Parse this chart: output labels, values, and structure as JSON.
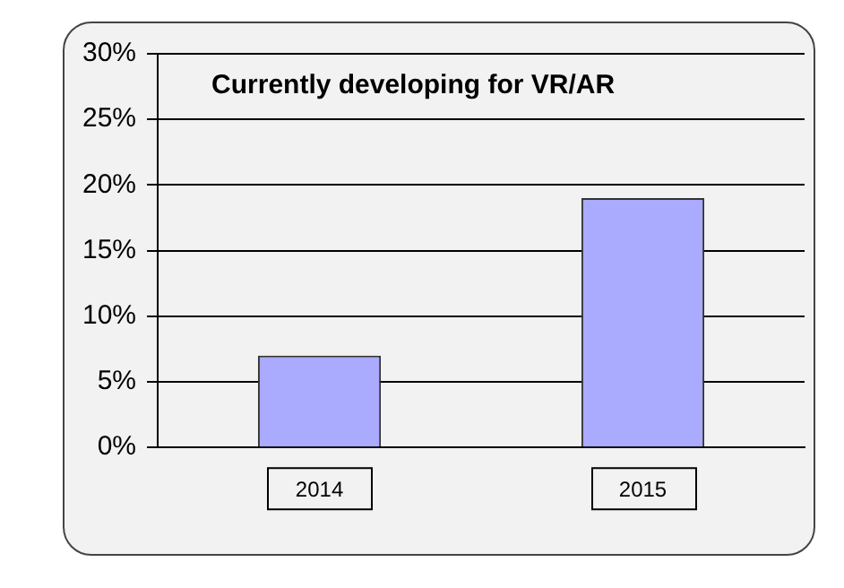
{
  "chart_data": {
    "type": "bar",
    "title": "Currently developing for VR/AR",
    "categories": [
      "2014",
      "2015"
    ],
    "values": [
      7,
      19
    ],
    "color": "#aaaaff",
    "ylim": [
      0,
      30
    ],
    "yticks": [
      {
        "value": 0,
        "label": "0%"
      },
      {
        "value": 5,
        "label": "5%"
      },
      {
        "value": 10,
        "label": "10%"
      },
      {
        "value": 15,
        "label": "15%"
      },
      {
        "value": 20,
        "label": "20%"
      },
      {
        "value": 25,
        "label": "25%"
      },
      {
        "value": 30,
        "label": "30%"
      }
    ],
    "grid": "y",
    "legend": false
  }
}
